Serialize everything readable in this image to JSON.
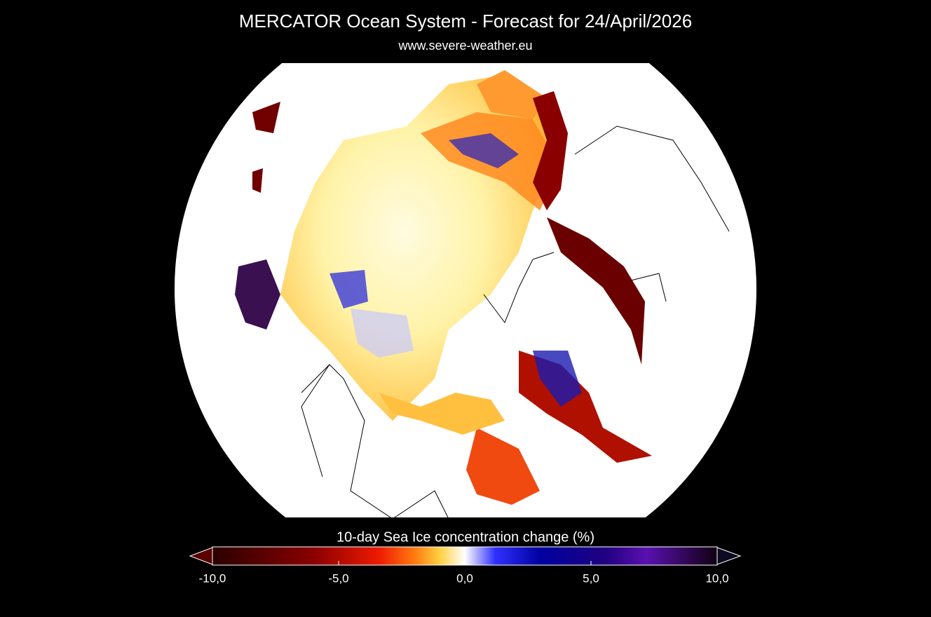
{
  "header": {
    "title": "MERCATOR Ocean System - Forecast for 24/April/2026",
    "subtitle": "www.severe-weather.eu"
  },
  "colorbar": {
    "label": "10-day Sea Ice concentration change (%)",
    "lim": [
      -10,
      10
    ],
    "ticks": [
      {
        "value": -10,
        "label": "-10,0"
      },
      {
        "value": -5,
        "label": "-5,0"
      },
      {
        "value": 0,
        "label": "0,0"
      },
      {
        "value": 5,
        "label": "5,0"
      },
      {
        "value": 10,
        "label": "10,0"
      }
    ]
  }
}
